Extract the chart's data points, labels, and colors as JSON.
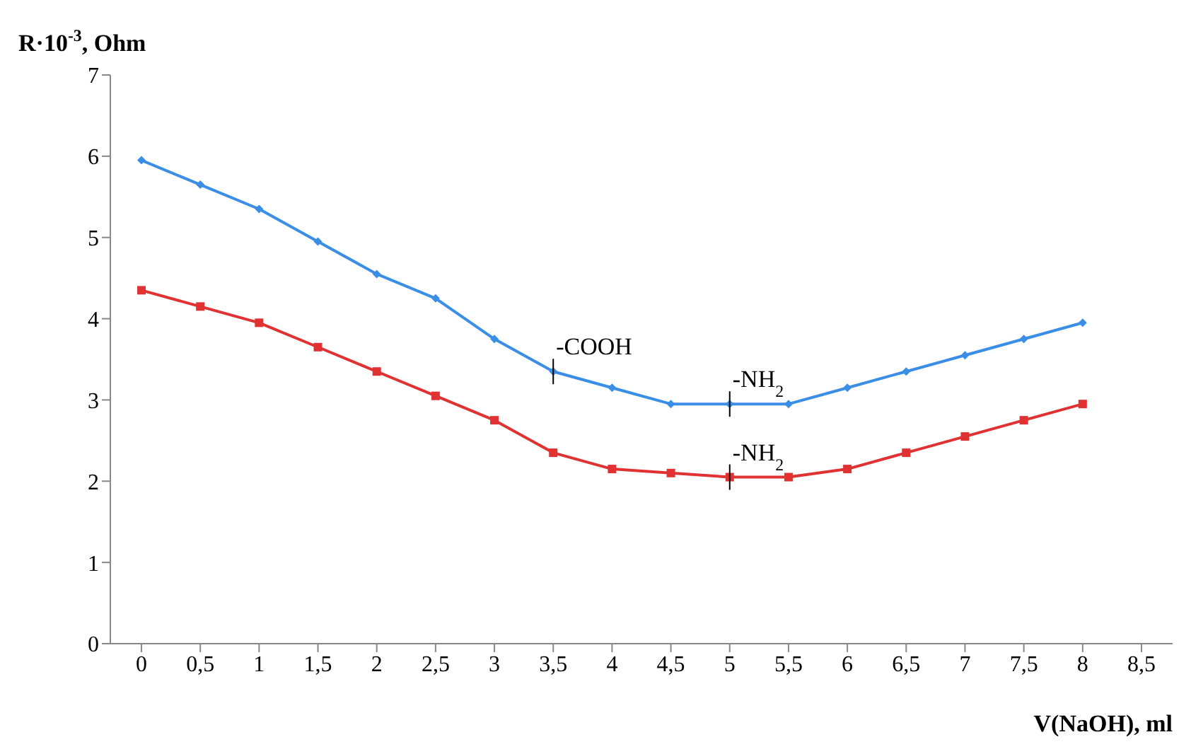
{
  "chart_data": {
    "type": "line",
    "ylabel": "R·10$^{-3}$, Ohm",
    "xlabel": "V(NaOH), ml",
    "categories": [
      "0",
      "0,5",
      "1",
      "1,5",
      "2",
      "2,5",
      "3",
      "3,5",
      "4",
      "4,5",
      "5",
      "5,5",
      "6",
      "6,5",
      "7",
      "7,5",
      "8",
      "8,5"
    ],
    "series": [
      {
        "color": "#3a8ee6",
        "marker": "diamond",
        "values": [
          5.95,
          5.65,
          5.35,
          4.95,
          4.55,
          4.25,
          3.75,
          3.35,
          3.15,
          2.95,
          2.95,
          2.95,
          3.15,
          3.35,
          3.55,
          3.75,
          3.95,
          null
        ]
      },
      {
        "color": "#e03232",
        "marker": "square",
        "values": [
          4.35,
          4.15,
          3.95,
          3.65,
          3.35,
          3.05,
          2.75,
          2.35,
          2.15,
          2.1,
          2.05,
          2.05,
          2.15,
          2.35,
          2.55,
          2.75,
          2.95,
          null
        ]
      }
    ],
    "ylim": [
      0,
      7
    ],
    "yticks": [
      0,
      1,
      2,
      3,
      4,
      5,
      6,
      7
    ],
    "grid": false,
    "legend": false,
    "annotations": [
      {
        "text": "-COOH",
        "x": "3,5",
        "y": 3.35
      },
      {
        "text": "-NH$_{2}$",
        "x": "5",
        "y": 2.95
      },
      {
        "text": "-NH$_{2}$",
        "x": "5",
        "y": 2.05
      }
    ]
  }
}
